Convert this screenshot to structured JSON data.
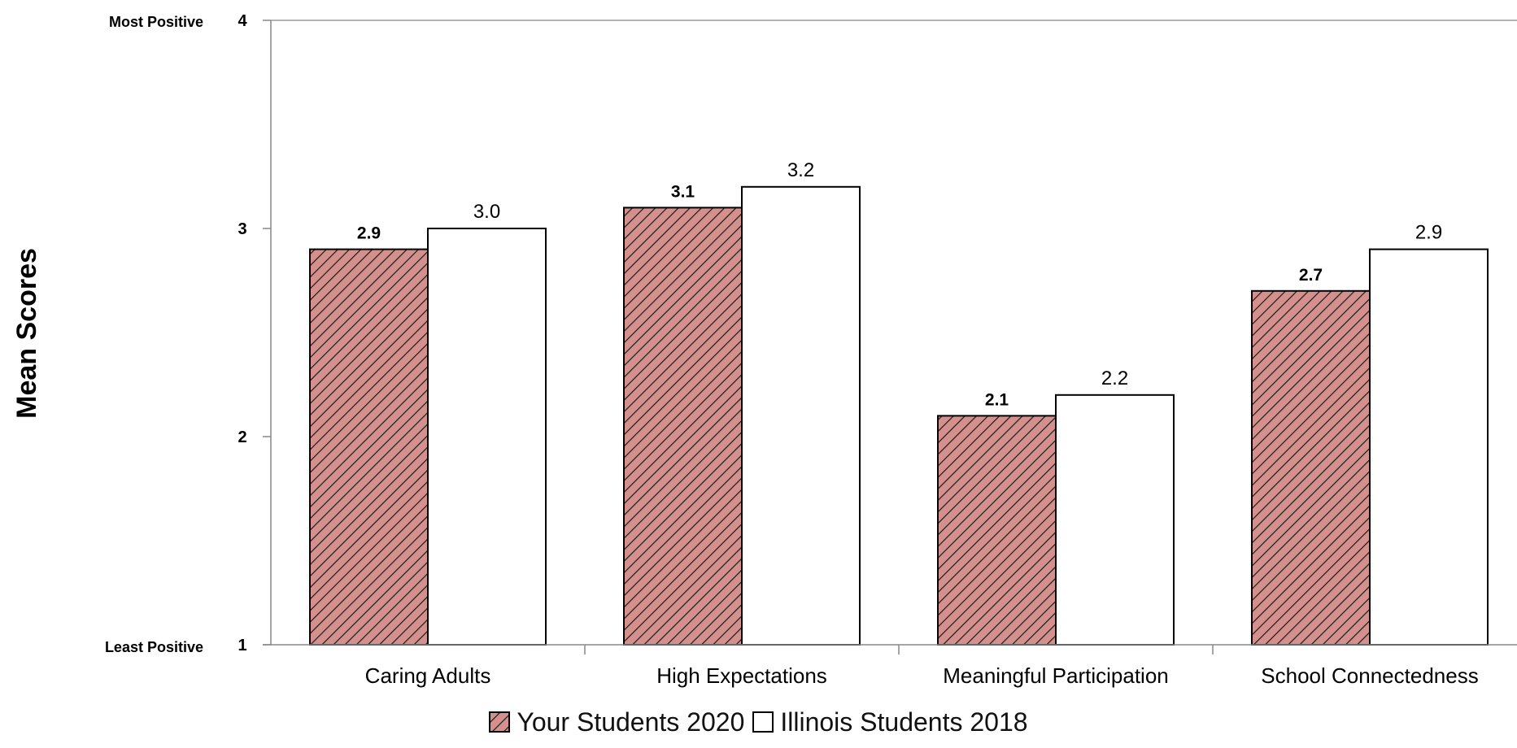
{
  "chart_data": {
    "type": "bar",
    "ylabel": "Mean Scores",
    "ylim": [
      1,
      4
    ],
    "yticks": [
      1,
      2,
      3,
      4
    ],
    "y_top_label": "Most Positive",
    "y_bottom_label": "Least Positive",
    "categories": [
      "Caring Adults",
      "High Expectations",
      "Meaningful Participation",
      "School Connectedness"
    ],
    "series": [
      {
        "name": "Your Students 2020",
        "values": [
          2.9,
          3.1,
          2.1,
          2.7
        ],
        "labels": [
          "2.9",
          "3.1",
          "2.1",
          "2.7"
        ],
        "fill": "#d4908c",
        "pattern": "diagonal-hatch"
      },
      {
        "name": "Illinois Students 2018",
        "values": [
          3.0,
          3.2,
          2.2,
          2.9
        ],
        "labels": [
          "3.0",
          "3.2",
          "2.2",
          "2.9"
        ],
        "fill": "#ffffff",
        "pattern": "none"
      }
    ],
    "grid": false,
    "legend": "bottom-center"
  }
}
